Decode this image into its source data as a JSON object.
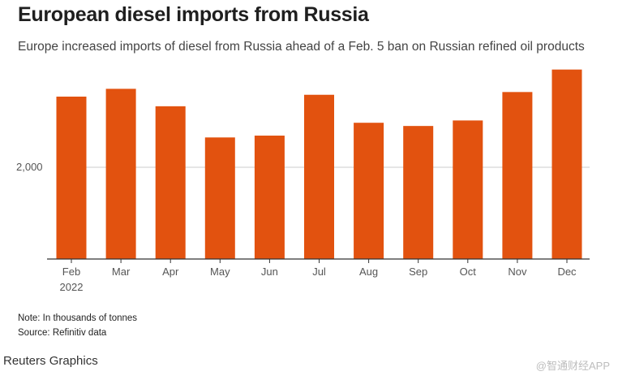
{
  "title": "European diesel imports from Russia",
  "subtitle": "Europe increased imports of diesel from Russia ahead of a Feb. 5 ban on Russian refined oil products",
  "note": "Note: In thousands of tonnes",
  "source": "Source: Refinitiv data",
  "footer": "Reuters Graphics",
  "watermark": "@智通财经APP",
  "colors": {
    "bar": "#e2520f",
    "axis": "#333333",
    "grid": "#cccccc"
  },
  "chart_data": {
    "type": "bar",
    "title": "European diesel imports from Russia",
    "subtitle": "Europe increased imports of diesel from Russia ahead of a Feb. 5 ban on Russian refined oil products",
    "categories": [
      "Feb",
      "Mar",
      "Apr",
      "May",
      "Jun",
      "Jul",
      "Aug",
      "Sep",
      "Oct",
      "Nov",
      "Dec"
    ],
    "year_label": "2022",
    "values": [
      3540,
      3710,
      3330,
      2650,
      2690,
      3580,
      2970,
      2900,
      3020,
      3640,
      4130
    ],
    "y_ticks": [
      2000
    ],
    "y_tick_labels": [
      "2,000"
    ],
    "ylim": [
      0,
      4300
    ],
    "xlabel": "",
    "ylabel": "",
    "grid": true
  }
}
